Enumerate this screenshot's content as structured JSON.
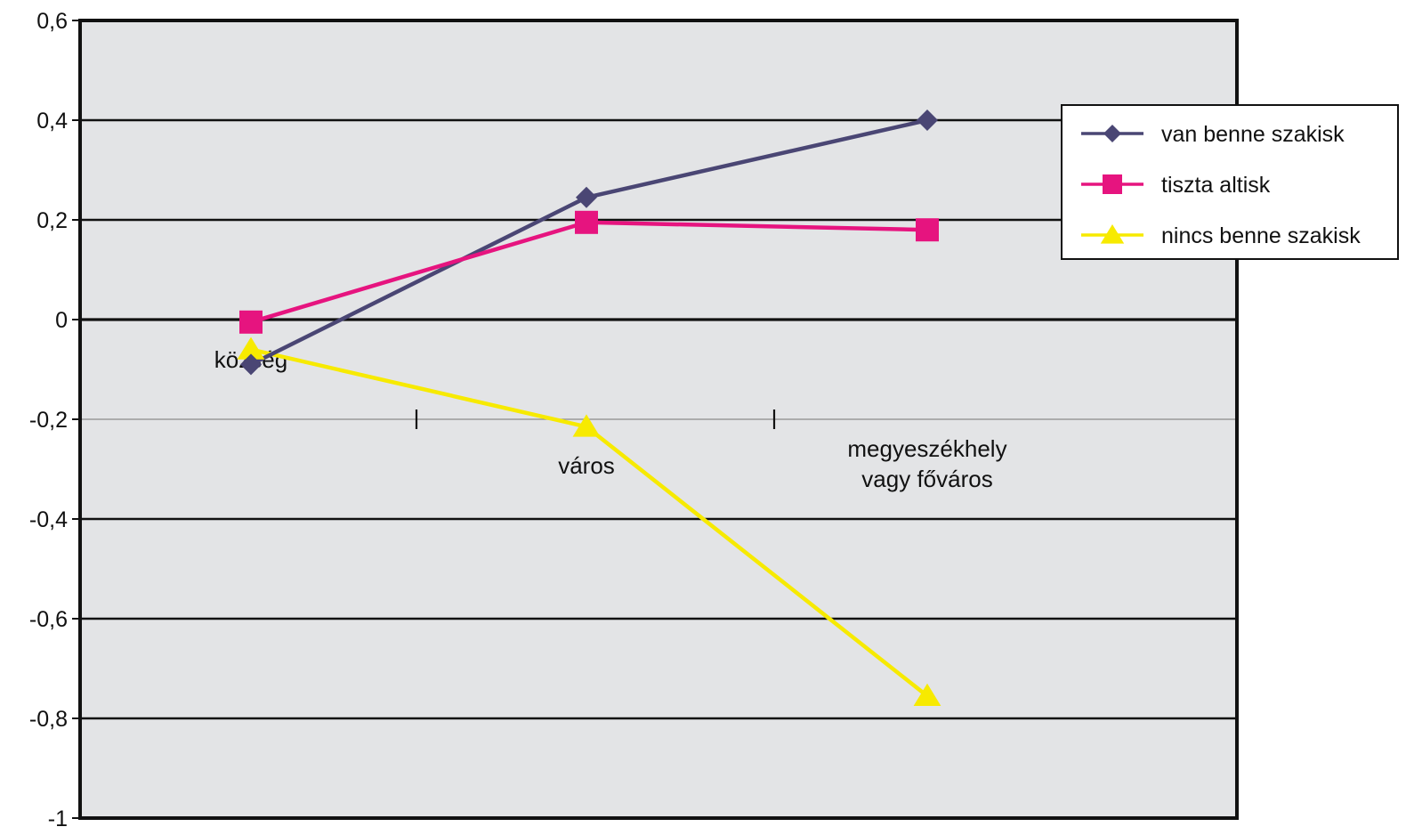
{
  "chart_data": {
    "type": "line",
    "title": "",
    "xlabel": "",
    "ylabel": "",
    "categories": [
      [
        "község"
      ],
      [
        "város"
      ],
      [
        "megyeszékhely",
        "vagy főváros"
      ]
    ],
    "ylim": [
      -1,
      0.6
    ],
    "yticks": [
      0.6,
      0.4,
      0.2,
      0,
      -0.2,
      -0.4,
      -0.6,
      -0.8,
      -1
    ],
    "ytick_labels": [
      "0,6",
      "0,4",
      "0,2",
      "0",
      "-0,2",
      "-0,4",
      "-0,6",
      "-0,8",
      "-1"
    ],
    "grid": true,
    "legend_position": "right",
    "plot_background": "#e3e4e6",
    "series": [
      {
        "name": "van benne szakisk",
        "values": [
          -0.09,
          0.245,
          0.4
        ],
        "color": "#4a4674",
        "marker": "diamond"
      },
      {
        "name": "tiszta altisk",
        "values": [
          -0.005,
          0.195,
          0.18
        ],
        "color": "#e6147f",
        "marker": "square"
      },
      {
        "name": "nincs benne szakisk",
        "values": [
          -0.06,
          -0.215,
          -0.755
        ],
        "color": "#f7ea00",
        "marker": "triangle"
      }
    ]
  }
}
